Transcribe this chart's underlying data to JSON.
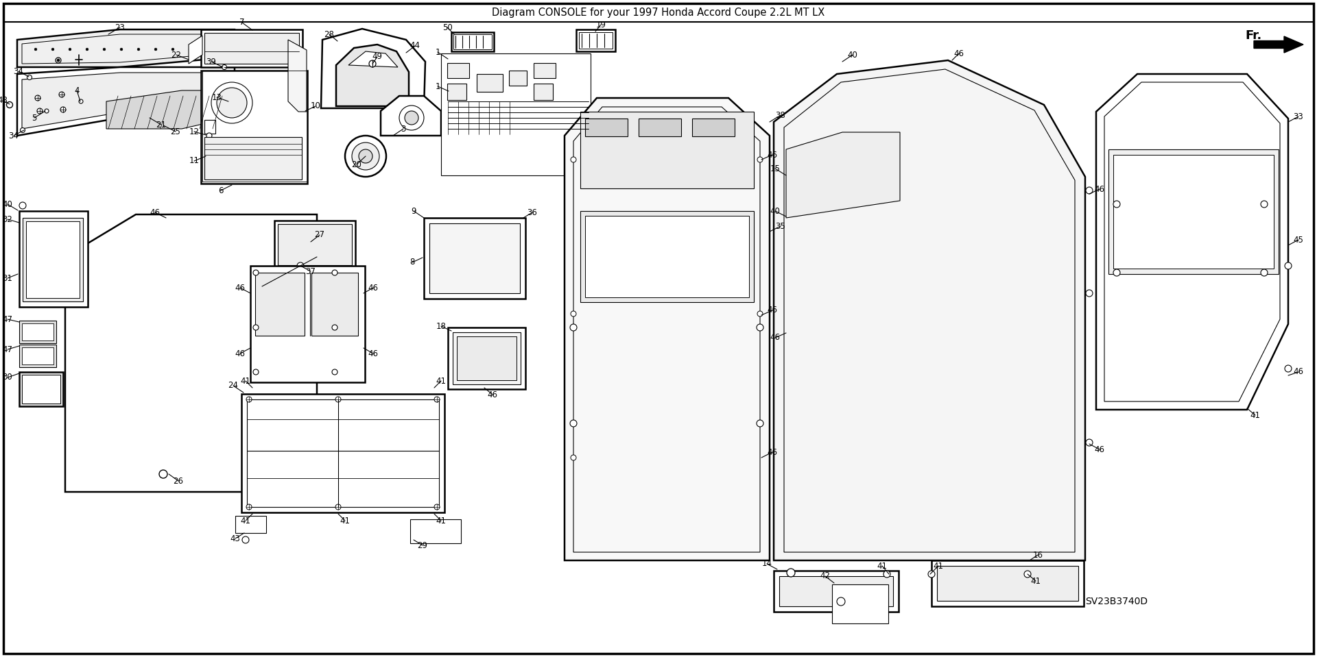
{
  "subtitle": "Diagram CONSOLE for your 1997 Honda Accord Coupe 2.2L MT LX",
  "diagram_code": "SV23B3740D",
  "background_color": "#ffffff",
  "fig_width": 19.2,
  "fig_height": 9.59,
  "dpi": 100
}
